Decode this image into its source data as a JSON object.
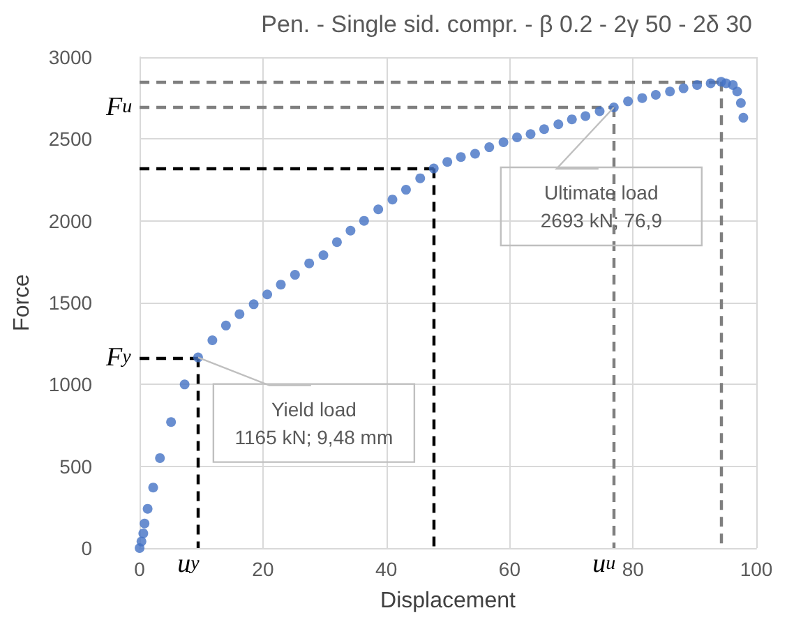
{
  "chart_data": {
    "type": "scatter",
    "title": "Pen. - Single sid. compr. - β 0.2 - 2γ 50 - 2δ 30",
    "xlabel": "Displacement",
    "ylabel": "Force",
    "x": [
      0,
      0.3,
      0.6,
      0.8,
      1.3,
      2.2,
      3.3,
      5.1,
      7.3,
      9.48,
      11.8,
      14,
      16.2,
      18.5,
      20.7,
      22.9,
      25.2,
      27.5,
      29.8,
      32,
      34.2,
      36.4,
      38.7,
      41,
      43.2,
      45.5,
      47.7,
      49.9,
      52.1,
      54.4,
      56.7,
      59,
      61.2,
      63.4,
      65.6,
      67.9,
      70.1,
      72.3,
      74.6,
      76.9,
      79.2,
      81.5,
      83.7,
      86,
      88.2,
      90.4,
      92.6,
      94.3,
      95.1,
      96.2,
      96.9,
      97.5,
      97.9
    ],
    "series": [
      {
        "color": "#4472c4",
        "values": [
          0,
          40,
          90,
          150,
          240,
          370,
          550,
          770,
          1000,
          1165,
          1270,
          1360,
          1430,
          1490,
          1550,
          1610,
          1670,
          1740,
          1790,
          1870,
          1940,
          2000,
          2070,
          2130,
          2190,
          2260,
          2320,
          2360,
          2390,
          2410,
          2450,
          2480,
          2510,
          2530,
          2560,
          2590,
          2620,
          2640,
          2670,
          2693,
          2730,
          2750,
          2770,
          2790,
          2810,
          2830,
          2840,
          2850,
          2840,
          2830,
          2790,
          2720,
          2630
        ]
      }
    ],
    "xlim": [
      0,
      100
    ],
    "xticks": [
      0,
      20,
      40,
      60,
      80,
      100
    ],
    "ylim": [
      0,
      3000
    ],
    "yticks": [
      0,
      500,
      1000,
      1500,
      2000,
      2500,
      3000
    ],
    "grid": true,
    "marker": "circle",
    "ref_lines": [
      {
        "axis": "y",
        "value": 1165,
        "label": "F$_{y}$",
        "color": "#000000",
        "line_style": "dashed"
      },
      {
        "axis": "x",
        "value": 9.48,
        "label": "u$_{y}$",
        "color": "#000000",
        "line_style": "dashed"
      },
      {
        "axis": "y",
        "value": 2320,
        "label": null,
        "color": "#000000",
        "line_style": "dashed"
      },
      {
        "axis": "x",
        "value": 47.7,
        "label": null,
        "color": "#000000",
        "line_style": "dashed"
      },
      {
        "axis": "y",
        "value": 2693,
        "label": "F$_{u}$",
        "color": "#7f7f7f",
        "line_style": "dashed"
      },
      {
        "axis": "x",
        "value": 76.9,
        "label": "u$_{u}$",
        "color": "#7f7f7f",
        "line_style": "dashed"
      },
      {
        "axis": "y",
        "value": 2850,
        "label": null,
        "color": "#7f7f7f",
        "line_style": "dashed"
      },
      {
        "axis": "x",
        "value": 94.3,
        "label": null,
        "color": "#7f7f7f",
        "line_style": "dashed"
      }
    ],
    "annotations": [
      {
        "text": "Yield load\n1165 kN; 9,48 mm",
        "x": 9.48,
        "y": 1165
      },
      {
        "text": "Ultimate load\n2693 kN; 76,9",
        "x": 76.9,
        "y": 2693
      }
    ]
  }
}
